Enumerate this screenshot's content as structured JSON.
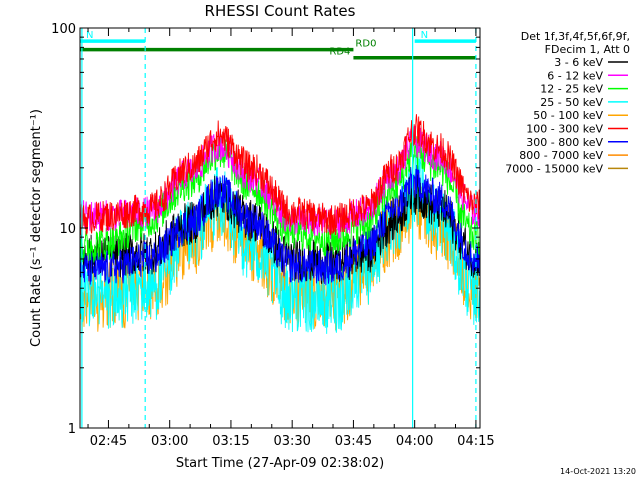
{
  "chart_data": {
    "type": "line",
    "title": "RHESSI Count Rates",
    "xlabel": "Start Time (27-Apr-09 02:38:02)",
    "ylabel": "Count Rate (s⁻¹ detector segment⁻¹)",
    "yscale": "log",
    "ylim": [
      1,
      100
    ],
    "xlim": [
      "02:38:02",
      "04:16:00"
    ],
    "x_tick_labels": [
      "02:45",
      "03:00",
      "03:15",
      "03:30",
      "03:45",
      "04:00",
      "04:15"
    ],
    "y_tick_labels": [
      "1",
      "10",
      "100"
    ],
    "grid": false,
    "legend_header": [
      "Det 1f,3f,4f,5f,6f,9f,",
      "FDecim 1, Att 0"
    ],
    "legend_placement": "right",
    "series": [
      {
        "name": "3 - 6 keV",
        "color": "#000000",
        "x": [
          "02:38",
          "02:45",
          "02:55",
          "03:05",
          "03:12",
          "03:20",
          "03:30",
          "03:40",
          "03:48",
          "03:55",
          "04:00",
          "04:06",
          "04:15"
        ],
        "values": [
          7.3,
          7.2,
          7.5,
          10.5,
          14.5,
          11,
          7,
          6.7,
          7.5,
          11,
          15,
          12.5,
          7.2
        ]
      },
      {
        "name": "6 - 12 keV",
        "color": "#ff00ff",
        "x": [
          "02:38",
          "02:45",
          "02:55",
          "03:05",
          "03:12",
          "03:20",
          "03:30",
          "03:40",
          "03:48",
          "03:55",
          "04:00",
          "04:06",
          "04:15"
        ],
        "values": [
          11.5,
          11.5,
          12,
          19,
          26,
          18,
          11,
          10.5,
          12,
          19,
          27,
          23,
          12
        ]
      },
      {
        "name": "12 - 25 keV",
        "color": "#00ff00",
        "x": [
          "02:38",
          "02:45",
          "02:55",
          "03:05",
          "03:12",
          "03:20",
          "03:30",
          "03:40",
          "03:48",
          "03:55",
          "04:00",
          "04:06",
          "04:15"
        ],
        "values": [
          8,
          8.5,
          11,
          17,
          24,
          16,
          9.5,
          8.8,
          10.5,
          16,
          24,
          20,
          9
        ]
      },
      {
        "name": "25 - 50 keV",
        "color": "#00ffff",
        "x": [
          "02:38",
          "02:45",
          "02:55",
          "03:05",
          "03:12",
          "03:20",
          "03:30",
          "03:40",
          "03:48",
          "03:55",
          "04:00",
          "04:06",
          "04:15"
        ],
        "values": [
          4.8,
          4.5,
          5,
          9,
          13.5,
          8,
          4.5,
          4.4,
          6,
          11,
          16,
          11,
          4.8
        ]
      },
      {
        "name": "50 - 100 keV",
        "color": "#ffa500",
        "x": [
          "02:38",
          "02:45",
          "02:55",
          "03:05",
          "03:12",
          "03:20",
          "03:30",
          "03:40",
          "03:48",
          "03:55",
          "04:00",
          "04:06",
          "04:15"
        ],
        "values": [
          4.5,
          4.6,
          5,
          8.5,
          12,
          8,
          4.8,
          4.6,
          6,
          10,
          13,
          10,
          5
        ]
      },
      {
        "name": "100 - 300 keV",
        "color": "#ff0000",
        "x": [
          "02:38",
          "02:45",
          "02:55",
          "03:05",
          "03:12",
          "03:20",
          "03:30",
          "03:40",
          "03:48",
          "03:55",
          "04:00",
          "04:06",
          "04:15"
        ],
        "values": [
          11,
          11.5,
          12.5,
          20,
          29,
          20,
          12,
          11,
          12.5,
          20,
          31,
          25,
          13
        ]
      },
      {
        "name": "300 - 800 keV",
        "color": "#0000ff",
        "x": [
          "02:38",
          "02:45",
          "02:55",
          "03:05",
          "03:12",
          "03:20",
          "03:30",
          "03:40",
          "03:48",
          "03:55",
          "04:00",
          "04:06",
          "04:15"
        ],
        "values": [
          6.2,
          6.3,
          7,
          10.5,
          15.5,
          11,
          6.5,
          6.3,
          8,
          12.5,
          17,
          14,
          7
        ]
      },
      {
        "name": "800 - 7000 keV",
        "color": "#ff8c00",
        "values": []
      },
      {
        "name": "7000 - 15000 keV",
        "color": "#b8860b",
        "values": []
      }
    ],
    "annotations": [
      {
        "label": "N",
        "color": "#00ffff",
        "start": "02:38:02",
        "end": "02:54:00",
        "level": 86
      },
      {
        "label": "N",
        "color": "#00ffff",
        "start": "04:00:00",
        "end": "04:15:00",
        "level": 86
      },
      {
        "label": "RD0",
        "color": "#008000",
        "start": "02:38:02",
        "end": "03:45:00",
        "level": 78
      },
      {
        "label": "RD4",
        "color": "#008000",
        "start": "03:45:00",
        "end": "04:15:00",
        "level": 71
      }
    ],
    "vertical_markers": [
      {
        "time": "02:38:30",
        "color": "#00ffff",
        "style": "solid"
      },
      {
        "time": "02:54:00",
        "color": "#00ffff",
        "style": "dashed"
      },
      {
        "time": "03:59:30",
        "color": "#00ffff",
        "style": "solid"
      },
      {
        "time": "04:15:00",
        "color": "#00ffff",
        "style": "dashed"
      }
    ],
    "footer_timestamp": "14-Oct-2021 13:20"
  }
}
